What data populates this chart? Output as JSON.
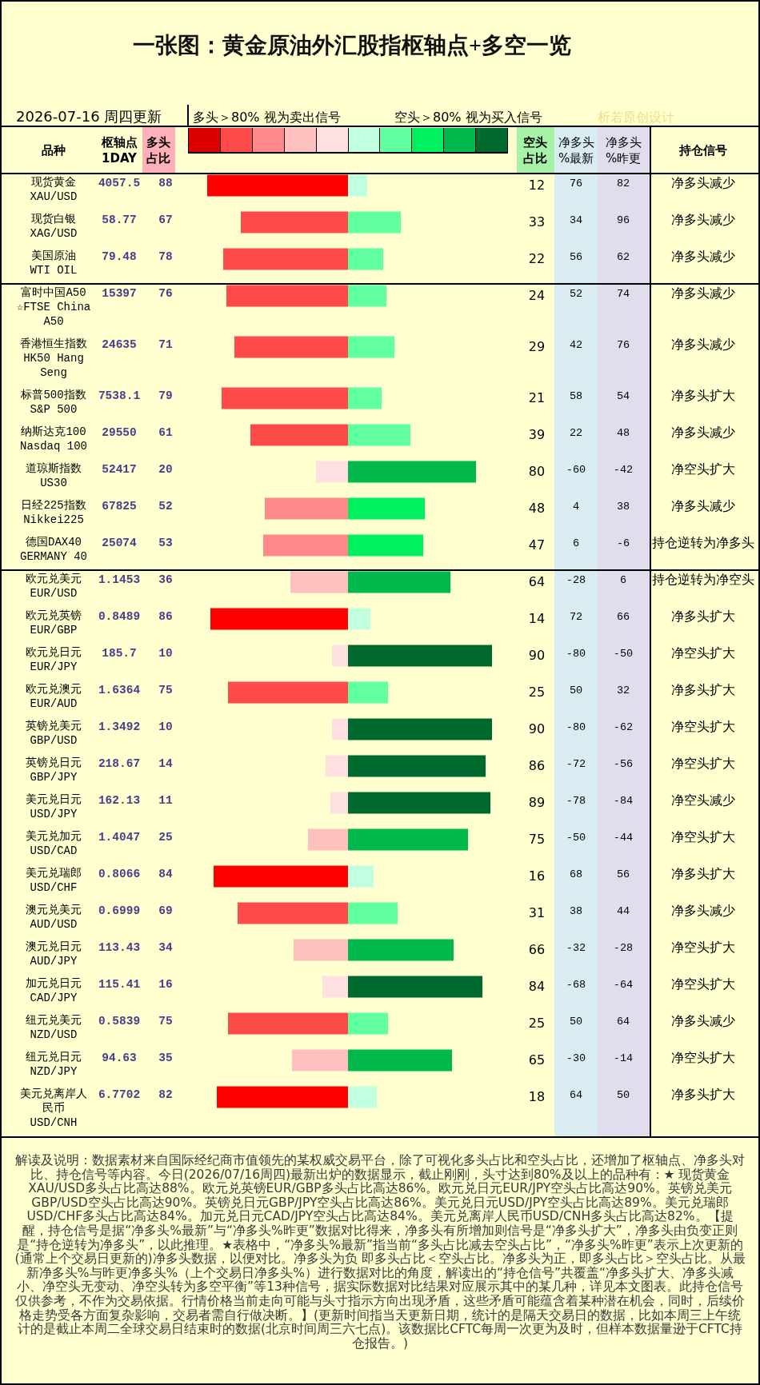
{
  "chart_data": {
    "type": "bar",
    "orientation": "horizontal",
    "stacked": true,
    "title": "一张图：黄金原油外汇股指枢轴点+多空一览",
    "subtitle": "2026-07-16 周四更新",
    "ylabel": "品种",
    "categories": [
      "现货黄金\nXAU/USD",
      "现货白银\nXAG/USD",
      "美国原油\nWTI OIL",
      "富时中国A50\n☆FTSE China A50",
      "香港恒生指数\nHK50 Hang Seng",
      "标普500指数\nS&P 500",
      "纳斯达克100\nNasdaq 100",
      "道琼斯指数\nUS30",
      "日经225指数\nNikkei225",
      "德国DAX40\nGERMANY 40",
      "欧元兑美元\nEUR/USD",
      "欧元兑英镑\nEUR/GBP",
      "欧元兑日元\nEUR/JPY",
      "欧元兑澳元\nEUR/AUD",
      "英镑兑美元\nGBP/USD",
      "英镑兑日元\nGBP/JPY",
      "美元兑日元\nUSD/JPY",
      "美元兑加元\nUSD/CAD",
      "美元兑瑞郎\nUSD/CHF",
      "澳元兑美元\nAUD/USD",
      "澳元兑日元\nAUD/JPY",
      "加元兑日元\nCAD/JPY",
      "纽元兑美元\nNZD/USD",
      "纽元兑日元\nNZD/JPY",
      "美元兑离岸人民币\nUSD/CNH"
    ],
    "tick_labels": "y",
    "series": [
      {
        "values": [
          -88,
          -67,
          -78,
          -76,
          -71,
          -79,
          -61,
          -20,
          -52,
          -53,
          -36,
          -86,
          -10,
          -75,
          -10,
          -14,
          -11,
          -25,
          -84,
          -69,
          -34,
          -16,
          -75,
          -35,
          -82
        ],
        "colors": [
          "#ff0000",
          "#ff4a4a",
          "#ff4a4a",
          "#ff4a4a",
          "#ff4a4a",
          "#ff4a4a",
          "#ff4a4a",
          "#ffe0e0",
          "#ff8888",
          "#ff8888",
          "#ffc0c0",
          "#ff0000",
          "#ffe0e0",
          "#ff4a4a",
          "#ffe0e0",
          "#ffe0e0",
          "#ffe0e0",
          "#ffc0c0",
          "#ff0000",
          "#ff4a4a",
          "#ffc0c0",
          "#ffe0e0",
          "#ff4a4a",
          "#ffc0c0",
          "#ff0000"
        ]
      },
      {
        "name": "空头占比",
        "values": [
          12,
          33,
          22,
          24,
          29,
          21,
          39,
          80,
          48,
          47,
          64,
          14,
          90,
          25,
          90,
          86,
          89,
          75,
          16,
          31,
          66,
          84,
          25,
          65,
          18
        ],
        "value_labels": [
          "12",
          "33",
          "22",
          "24",
          "29",
          "21",
          "39",
          "80",
          "48",
          "47",
          "64",
          "14",
          "90",
          "25",
          "90",
          "86",
          "89",
          "75",
          "16",
          "31",
          "66",
          "84",
          "25",
          "65",
          "18"
        ],
        "colors": [
          "#c0ffe0",
          "#60ffa0",
          "#60ffa0",
          "#60ffa0",
          "#60ffa0",
          "#60ffa0",
          "#60ffa0",
          "#00b84c",
          "#00f060",
          "#00f060",
          "#00b84c",
          "#c0ffe0",
          "#006a2e",
          "#60ffa0",
          "#006a2e",
          "#006a2e",
          "#006a2e",
          "#00b84c",
          "#c0ffe0",
          "#60ffa0",
          "#00b84c",
          "#006a2e",
          "#60ffa0",
          "#00b84c",
          "#c0ffe0"
        ]
      }
    ],
    "annotations": [
      "多头＞80% 视为卖出信号",
      "空头＞80% 视为买入信号",
      "析若原创设计",
      "枢轴点1DAY",
      "多头占比",
      "净多头%最新",
      "净多头%昨更",
      "持仓信号",
      "4057.5",
      "58.77",
      "79.48",
      "15397",
      "24635",
      "7538.1",
      "29550",
      "52417",
      "67825",
      "25074",
      "1.1453",
      "0.8489",
      "185.7",
      "1.6364",
      "1.3492",
      "218.67",
      "162.13",
      "1.4047",
      "0.8066",
      "0.6999",
      "113.43",
      "115.41",
      "0.5839",
      "94.63",
      "6.7702",
      "88",
      "67",
      "78",
      "76",
      "71",
      "79",
      "61",
      "20",
      "52",
      "53",
      "36",
      "86",
      "10",
      "75",
      "10",
      "14",
      "11",
      "25",
      "84",
      "69",
      "34",
      "16",
      "75",
      "35",
      "82",
      "76",
      "34",
      "56",
      "52",
      "42",
      "58",
      "22",
      "-60",
      "4",
      "6",
      "-28",
      "72",
      "-80",
      "50",
      "-80",
      "-72",
      "-78",
      "-50",
      "68",
      "38",
      "-32",
      "-68",
      "50",
      "-30",
      "64",
      "82",
      "96",
      "62",
      "74",
      "76",
      "54",
      "48",
      "-42",
      "38",
      "-6",
      "6",
      "66",
      "-50",
      "32",
      "-62",
      "-56",
      "-84",
      "-44",
      "56",
      "44",
      "-28",
      "-64",
      "64",
      "-14",
      "50",
      "净多头减少",
      "净多头减少",
      "净多头减少",
      "净多头减少",
      "净多头减少",
      "净多头扩大",
      "净多头减少",
      "净空头扩大",
      "净多头减少",
      "持仓逆转为净多头",
      "持仓逆转为净空头",
      "净多头扩大",
      "净空头扩大",
      "净多头扩大",
      "净空头扩大",
      "净空头扩大",
      "净空头减少",
      "净空头扩大",
      "净多头扩大",
      "净多头减少",
      "净空头扩大",
      "净空头扩大",
      "净多头减少",
      "净空头扩大",
      "净多头扩大",
      "解读及说明：数据素材来自国际经纪商市值领先的某权威交易平台，除了可视化多头占比和空头占比，还增加了枢轴点、净多头对比、持仓信号等内容。今日(2026/07/16周四)最新出炉的数据显示，截止刚刚，头寸达到80%及以上的品种有：★ 现货黄金XAU/USD多头占比高达88%。欧元兑英镑EUR/GBP多头占比高达86%。欧元兑日元EUR/JPY空头占比高达90%。英镑兑美元GBP/USD空头占比高达90%。英镑兑日元GBP/JPY空头占比高达86%。美元兑日元USD/JPY空头占比高达89%。美元兑瑞郎USD/CHF多头占比高达84%。加元兑日元CAD/JPY空头占比高达84%。美元兑离岸人民币USD/CNH多头占比高达82%。【提醒，持仓信号是据“净多头%最新”与“净多头%昨更”数据对比得来，净多头有所增加则信号是“净多头扩大”，净多头由负变正则是“持仓逆转为净多头”，以此推理。★表格中，“净多头%最新”指当前“多头占比减去空头占比”，“净多头%昨更”表示上次更新的(通常上个交易日更新的)净多头数据，以便对比。净多头为负 即多头占比＜空头占比。净多头为正，即多头占比＞空头占比。从最新净多头%与昨更净多头%（上个交易日净多头%）进行数据对比的角度，解读出的“持仓信号”共覆盖“净多头扩大、净多头减小、净空头无变动、净空头转为多空平衡”等13种信号，据实际数据对比结果对应展示其中的某几种，详见本文图表。此持仓信号仅供参考，不作为交易依据。行情价格当前走向可能与头寸指示方向出现矛盾，这些矛盾可能蕴含着某种潜在机会，同时，后续价格走势受各方面复杂影响，交易者需自行做决断。】(更新时间指当天更新日期，统计的是隔天交易日的数据，比如本周三上午统计的是截止本周二全球交易日结束时的数据(北京时间周三六七点)。该数据比CFTC每周一次更为及时，但样本数据量逊于CFTC持仓报告。)"
    ]
  }
}
